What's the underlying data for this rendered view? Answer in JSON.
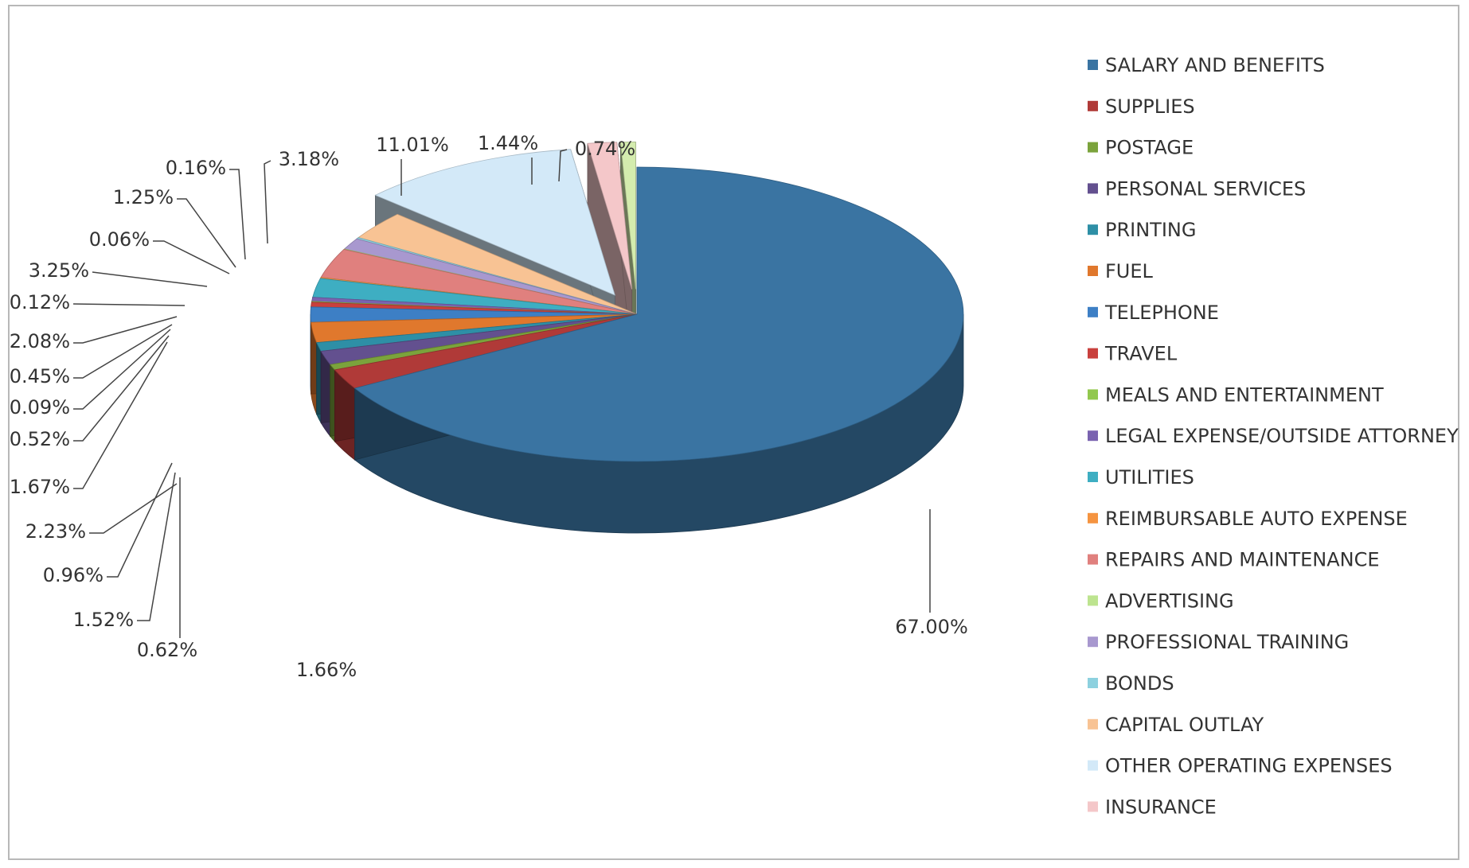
{
  "chart_data": {
    "type": "pie",
    "legend_position": "right",
    "slices": [
      {
        "name": "SALARY AND BENEFITS",
        "label": "67.00%",
        "value": 67.0,
        "color": "#3a74a2"
      },
      {
        "name": "SUPPLIES",
        "label": "2.23%",
        "value": 2.23,
        "color": "#b03a38"
      },
      {
        "name": "POSTAGE",
        "label": "0.62%",
        "value": 0.62,
        "color": "#7ba33c"
      },
      {
        "name": "PERSONAL SERVICES",
        "label": "1.52%",
        "value": 1.52,
        "color": "#63508f"
      },
      {
        "name": "PRINTING",
        "label": "0.96%",
        "value": 0.96,
        "color": "#2e8fa6"
      },
      {
        "name": "FUEL",
        "label": "2.23%",
        "value": 2.23,
        "color": "#e0782d"
      },
      {
        "name": "TELEPHONE",
        "label": "1.67%",
        "value": 1.67,
        "color": "#3d7fc5"
      },
      {
        "name": "TRAVEL",
        "label": "0.52%",
        "value": 0.52,
        "color": "#c9403d"
      },
      {
        "name": "MEALS AND ENTERTAINMENT",
        "label": "0.09%",
        "value": 0.09,
        "color": "#92c84e"
      },
      {
        "name": "LEGAL EXPENSE/OUTSIDE ATTORNEY",
        "label": "0.45%",
        "value": 0.45,
        "color": "#7a63b0"
      },
      {
        "name": "UTILITIES",
        "label": "2.08%",
        "value": 2.08,
        "color": "#3eaec2"
      },
      {
        "name": "REIMBURSABLE AUTO EXPENSE",
        "label": "0.12%",
        "value": 0.12,
        "color": "#f59440"
      },
      {
        "name": "REPAIRS AND MAINTENANCE",
        "label": "3.25%",
        "value": 3.25,
        "color": "#e0807e"
      },
      {
        "name": "ADVERTISING",
        "label": "0.06%",
        "value": 0.06,
        "color": "#bde48f"
      },
      {
        "name": "PROFESSIONAL TRAINING",
        "label": "1.25%",
        "value": 1.25,
        "color": "#a898cf"
      },
      {
        "name": "BONDS",
        "label": "0.16%",
        "value": 0.16,
        "color": "#8dd1df"
      },
      {
        "name": "CAPITAL OUTLAY",
        "label": "3.18%",
        "value": 3.18,
        "color": "#f8c394"
      },
      {
        "name": "OTHER OPERATING EXPENSES",
        "label": "11.01%",
        "value": 11.01,
        "color": "#d3e9f8"
      },
      {
        "name": "INSURANCE",
        "label": "1.44%",
        "value": 1.44,
        "color": "#f4c7c9"
      },
      {
        "name": "",
        "label": "0.74%",
        "value": 0.74,
        "color": "#d4ecae"
      }
    ],
    "unplaced_label": "1.66%"
  }
}
